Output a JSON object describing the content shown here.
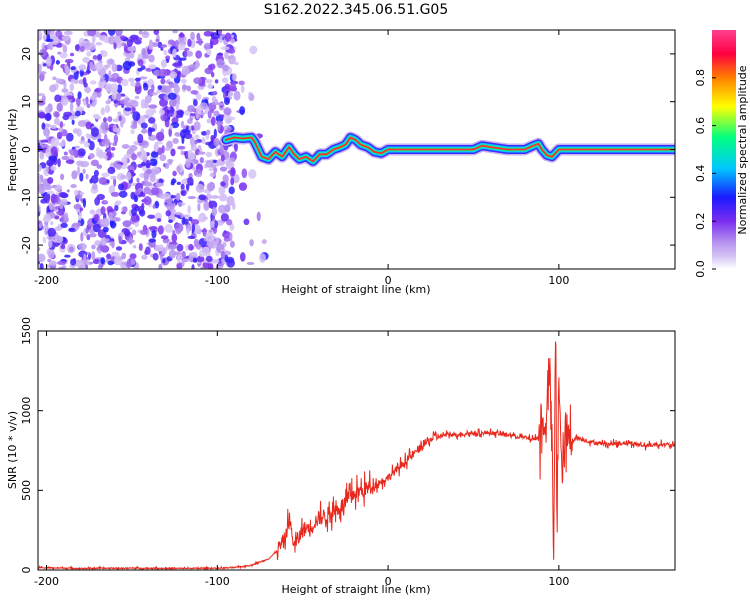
{
  "title": "S162.2022.345.06.51.G05",
  "chart_data": [
    {
      "type": "heatmap",
      "xlabel": "Height of straight line (km)",
      "ylabel": "Frequency (Hz)",
      "xlim": [
        -205,
        168
      ],
      "ylim": [
        -25,
        25
      ],
      "xticks": [
        -200,
        -100,
        0,
        100
      ],
      "yticks": [
        20,
        10,
        0,
        -10,
        -20
      ],
      "colorbar": {
        "label": "Normalized spectral amplitude",
        "range": [
          0,
          1
        ],
        "ticks": [
          "0.0",
          "0.2",
          "0.4",
          "0.6",
          "0.8"
        ],
        "colors": [
          "#ffffff",
          "#d8c7f5",
          "#b08aef",
          "#7a2cf0",
          "#1a1aff",
          "#00c8ff",
          "#00ff80",
          "#ffff00",
          "#ff8000",
          "#ff0040",
          "#ff3f8f"
        ]
      },
      "noise_region": {
        "x": [
          -205,
          -90
        ],
        "y": [
          -25,
          25
        ],
        "amplitude": [
          0.05,
          0.3
        ]
      },
      "ridge": {
        "x": [
          -95,
          -90,
          -85,
          -80,
          -78,
          -74,
          -70,
          -66,
          -62,
          -58,
          -55,
          -52,
          -48,
          -44,
          -40,
          -36,
          -32,
          -28,
          -25,
          -22,
          -19,
          -16,
          -12,
          -8,
          -4,
          0,
          10,
          20,
          30,
          40,
          50,
          55,
          60,
          70,
          80,
          85,
          88,
          90,
          93,
          96,
          100,
          110,
          120,
          140,
          168
        ],
        "y": [
          2,
          2.5,
          2.3,
          2.5,
          1.5,
          -1.5,
          -2,
          -0.5,
          -1.5,
          0.5,
          -1,
          -2,
          -1.5,
          -2.5,
          -1,
          -1,
          0,
          0.5,
          1,
          2.5,
          2,
          1,
          0.5,
          -0.5,
          -0.8,
          0,
          0,
          0,
          0,
          0,
          0,
          0.8,
          0.5,
          0,
          0,
          0.8,
          1.2,
          0,
          -1.2,
          -1.5,
          0,
          0,
          0,
          0,
          0
        ]
      }
    },
    {
      "type": "line",
      "xlabel": "Height of straight line (km)",
      "ylabel": "SNR (10 * v/v)",
      "xlim": [
        -205,
        168
      ],
      "ylim": [
        0,
        1500
      ],
      "xticks": [
        -200,
        -100,
        0,
        100
      ],
      "yticks": [
        0,
        500,
        1000,
        1500
      ],
      "series": [
        {
          "color": "#e8281c",
          "x": [
            -205,
            -180,
            -150,
            -120,
            -100,
            -90,
            -80,
            -70,
            -65,
            -60,
            -58,
            -55,
            -50,
            -45,
            -40,
            -35,
            -30,
            -25,
            -20,
            -15,
            -10,
            -5,
            0,
            5,
            10,
            15,
            20,
            25,
            30,
            35,
            40,
            50,
            60,
            70,
            80,
            85,
            90,
            93,
            95,
            97,
            98,
            99,
            100,
            102,
            104,
            106,
            110,
            120,
            130,
            140,
            150,
            160,
            168
          ],
          "y": [
            15,
            10,
            12,
            10,
            12,
            15,
            30,
            70,
            120,
            200,
            330,
            150,
            250,
            280,
            330,
            350,
            380,
            420,
            480,
            500,
            520,
            550,
            580,
            630,
            680,
            730,
            780,
            820,
            840,
            850,
            850,
            860,
            860,
            850,
            830,
            820,
            840,
            1000,
            1250,
            50,
            1500,
            200,
            1300,
            500,
            900,
            800,
            830,
            800,
            790,
            800,
            780,
            790,
            780
          ]
        }
      ]
    }
  ]
}
